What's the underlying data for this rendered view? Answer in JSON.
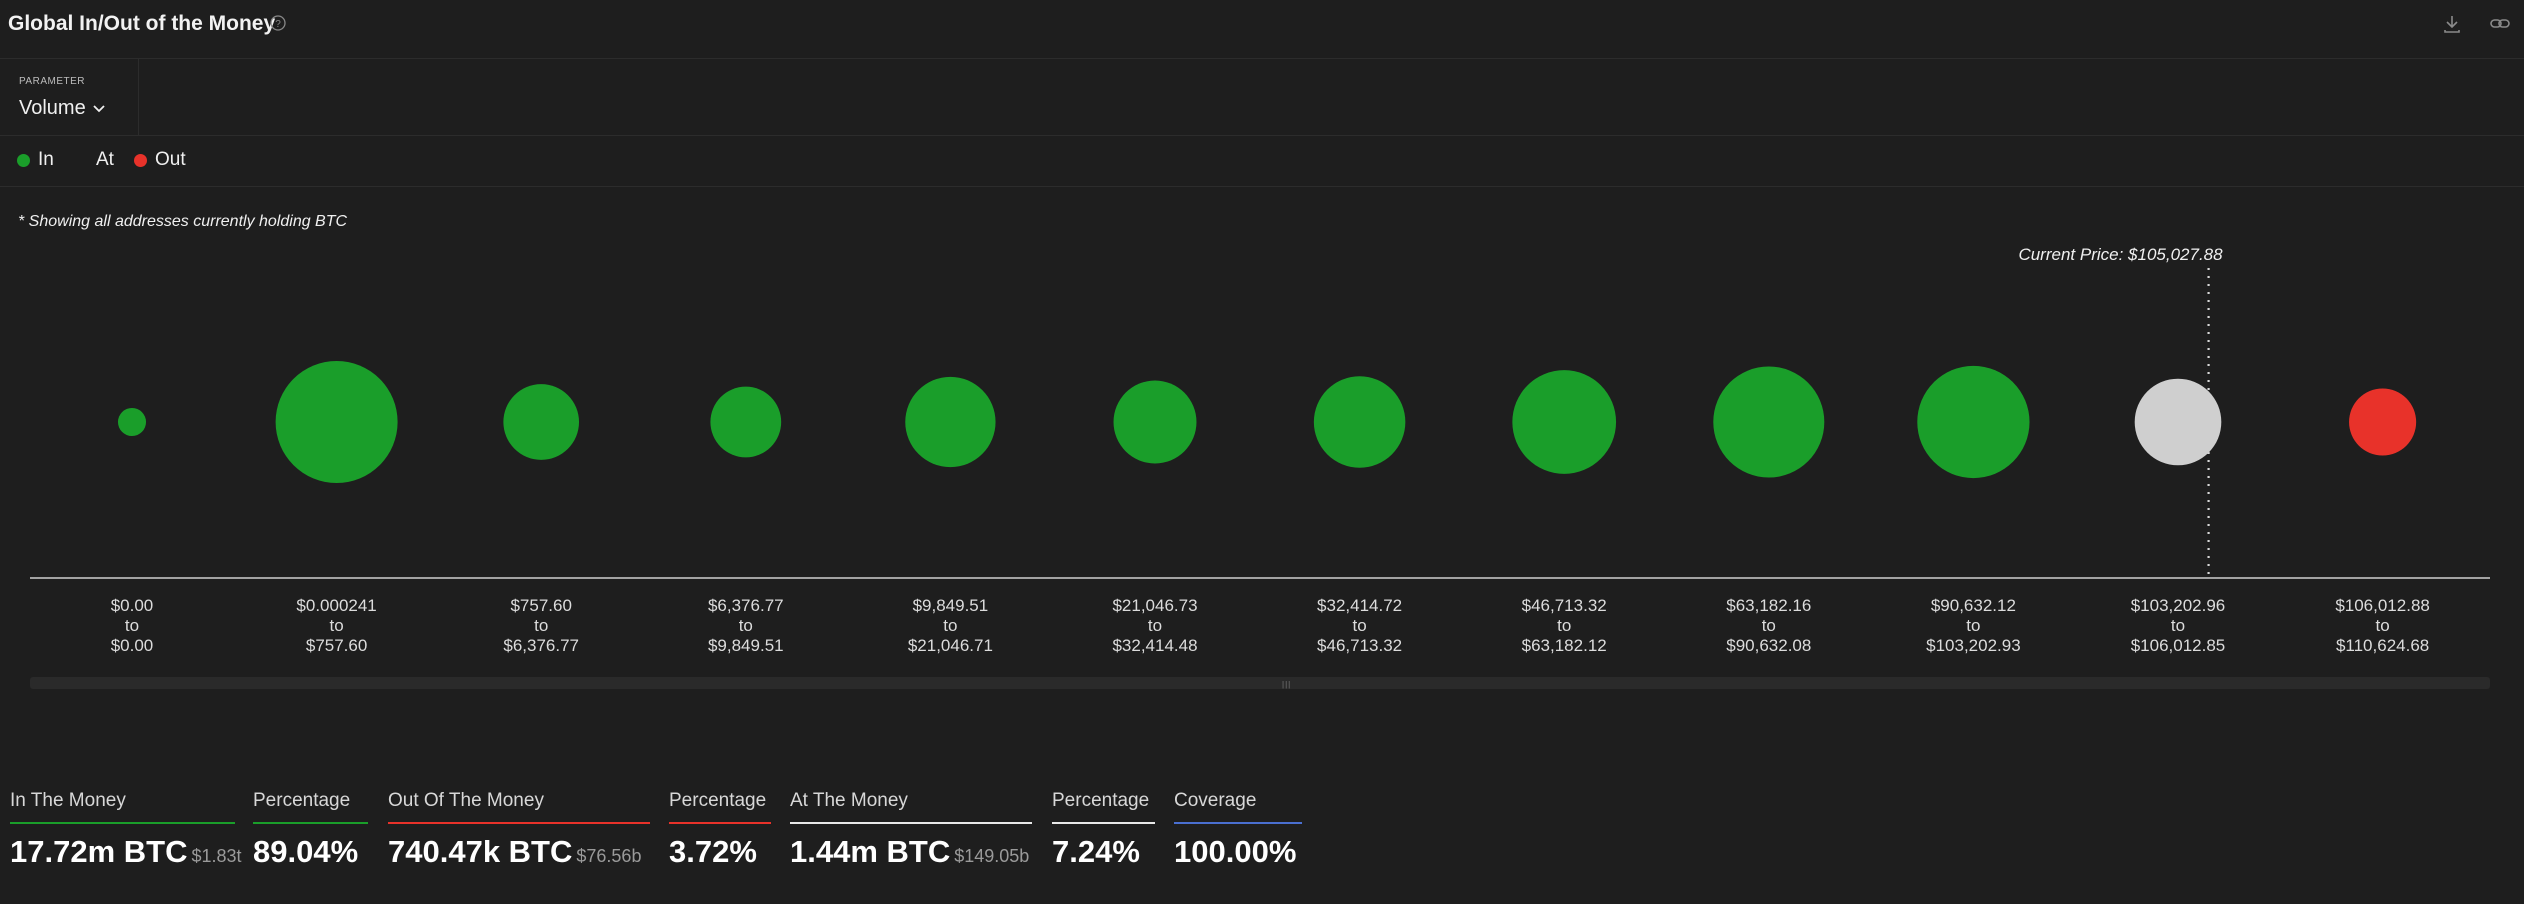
{
  "header": {
    "title": "Global In/Out of the Money",
    "icons": [
      "help-icon",
      "download-icon",
      "link-icon"
    ]
  },
  "parameter": {
    "label": "PARAMETER",
    "value": "Volume"
  },
  "legend": [
    {
      "label": "In",
      "color": "#1a9e2a"
    },
    {
      "label": "At",
      "color": "#cfcfcf"
    },
    {
      "label": "Out",
      "color": "#e8322a"
    }
  ],
  "note": "* Showing all addresses currently holding BTC",
  "chart_data": {
    "type": "bubble",
    "current_price_label": "Current Price: $105,027.88",
    "current_price": 105027.88,
    "connector": "to",
    "buckets": [
      {
        "from": "$0.00",
        "to": "$0.00",
        "status": "in",
        "relative_size": 0.23
      },
      {
        "from": "$0.000241",
        "to": "$757.60",
        "status": "in",
        "relative_size": 1.0
      },
      {
        "from": "$757.60",
        "to": "$6,376.77",
        "status": "in",
        "relative_size": 0.62
      },
      {
        "from": "$6,376.77",
        "to": "$9,849.51",
        "status": "in",
        "relative_size": 0.58
      },
      {
        "from": "$9,849.51",
        "to": "$21,046.71",
        "status": "in",
        "relative_size": 0.74
      },
      {
        "from": "$21,046.73",
        "to": "$32,414.48",
        "status": "in",
        "relative_size": 0.68
      },
      {
        "from": "$32,414.72",
        "to": "$46,713.32",
        "status": "in",
        "relative_size": 0.75
      },
      {
        "from": "$46,713.32",
        "to": "$63,182.12",
        "status": "in",
        "relative_size": 0.85
      },
      {
        "from": "$63,182.16",
        "to": "$90,632.08",
        "status": "in",
        "relative_size": 0.91
      },
      {
        "from": "$90,632.12",
        "to": "$103,202.93",
        "status": "in",
        "relative_size": 0.92
      },
      {
        "from": "$103,202.96",
        "to": "$106,012.85",
        "status": "at",
        "relative_size": 0.71
      },
      {
        "from": "$106,012.88",
        "to": "$110,624.68",
        "status": "out",
        "relative_size": 0.55
      }
    ],
    "colors": {
      "in": "#1a9e2a",
      "at": "#cfcfcf",
      "out": "#e8322a"
    }
  },
  "stats": [
    {
      "label": "In The Money",
      "value": "17.72m BTC",
      "sub": "$1.83t",
      "color": "#1a9e2a"
    },
    {
      "label": "Percentage",
      "value": "89.04%",
      "sub": "",
      "color": "#1a9e2a"
    },
    {
      "label": "Out Of The Money",
      "value": "740.47k BTC",
      "sub": "$76.56b",
      "color": "#e8322a"
    },
    {
      "label": "Percentage",
      "value": "3.72%",
      "sub": "",
      "color": "#e8322a"
    },
    {
      "label": "At The Money",
      "value": "1.44m BTC",
      "sub": "$149.05b",
      "color": "#e8e8e8"
    },
    {
      "label": "Percentage",
      "value": "7.24%",
      "sub": "",
      "color": "#e8e8e8"
    },
    {
      "label": "Coverage",
      "value": "100.00%",
      "sub": "",
      "color": "#4a6fd1"
    }
  ]
}
